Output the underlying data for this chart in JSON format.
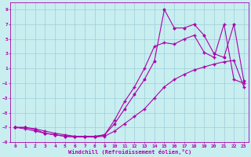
{
  "xlabel": "Windchill (Refroidissement éolien,°C)",
  "bg_color": "#c8eef0",
  "line_color": "#aa00aa",
  "grid_color": "#9ecdd8",
  "xlim": [
    -0.5,
    23.5
  ],
  "ylim": [
    -9,
    10
  ],
  "xticks": [
    0,
    1,
    2,
    3,
    4,
    5,
    6,
    7,
    8,
    9,
    10,
    11,
    12,
    13,
    14,
    15,
    16,
    17,
    18,
    19,
    20,
    21,
    22,
    23
  ],
  "yticks": [
    -9,
    -7,
    -5,
    -3,
    -1,
    1,
    3,
    5,
    7,
    9
  ],
  "line1_x": [
    0,
    1,
    2,
    3,
    4,
    5,
    6,
    7,
    8,
    9,
    10,
    11,
    12,
    13,
    14,
    15,
    16,
    17,
    18,
    19,
    20,
    21,
    22,
    23
  ],
  "line1_y": [
    -7,
    -7.2,
    -7.5,
    -7.8,
    -8.0,
    -8.2,
    -8.3,
    -8.3,
    -8.3,
    -8.2,
    -7.5,
    -6.5,
    -5.5,
    -4.5,
    -3.0,
    -1.5,
    -0.5,
    0.2,
    0.8,
    1.2,
    1.6,
    1.9,
    2.1,
    -1.5
  ],
  "line2_x": [
    0,
    1,
    2,
    3,
    4,
    5,
    6,
    7,
    8,
    9,
    10,
    11,
    12,
    13,
    14,
    15,
    16,
    17,
    18,
    19,
    20,
    21,
    22,
    23
  ],
  "line2_y": [
    -7,
    -7.0,
    -7.3,
    -7.8,
    -8.0,
    -8.2,
    -8.3,
    -8.3,
    -8.3,
    -8.0,
    -6.5,
    -4.5,
    -2.5,
    -0.5,
    2.0,
    9.0,
    6.5,
    6.5,
    7.0,
    5.5,
    3.0,
    2.5,
    7.0,
    -0.7
  ],
  "line3_x": [
    0,
    1,
    2,
    3,
    4,
    5,
    6,
    7,
    8,
    9,
    10,
    11,
    12,
    13,
    14,
    15,
    16,
    17,
    18,
    19,
    20,
    21,
    22,
    23
  ],
  "line3_y": [
    -7,
    -7.0,
    -7.2,
    -7.5,
    -7.8,
    -8.0,
    -8.2,
    -8.2,
    -8.2,
    -8.0,
    -6.0,
    -3.5,
    -1.5,
    1.0,
    4.0,
    4.5,
    4.3,
    5.0,
    5.5,
    3.2,
    2.5,
    7.0,
    -0.5,
    -1.0
  ]
}
